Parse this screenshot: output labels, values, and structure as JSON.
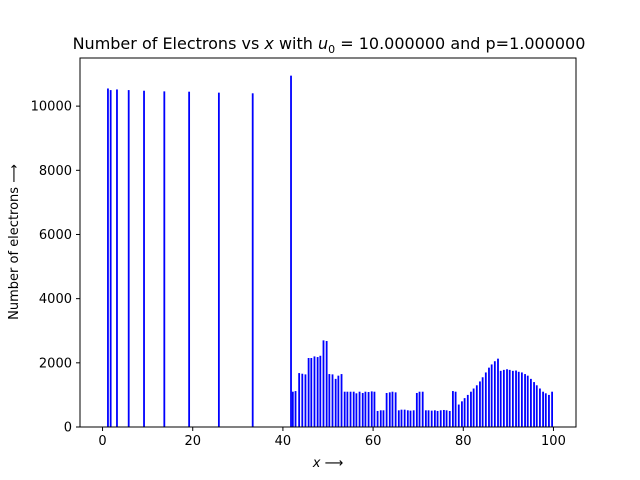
{
  "chart_data": {
    "type": "bar",
    "title_parts": [
      "Number of Electrons vs ",
      "x",
      " with ",
      "u",
      "0",
      " = 10.000000 and p=1.000000"
    ],
    "xlabel_parts": [
      "x",
      " ⟶"
    ],
    "ylabel": "Number of electrons  ⟶",
    "xlim": [
      -5,
      105
    ],
    "ylim": [
      0,
      11500
    ],
    "xticks": [
      0,
      20,
      40,
      60,
      80,
      100
    ],
    "yticks": [
      0,
      2000,
      4000,
      6000,
      8000,
      10000
    ],
    "bar_width": 0.4,
    "bar_color": "#0000ff",
    "grid": false,
    "x": [
      1.2,
      1.8,
      3.2,
      5.8,
      9.2,
      13.7,
      19.2,
      25.8,
      33.3,
      41.8,
      42.2,
      42.8,
      43.6,
      44.3,
      45.0,
      45.7,
      46.3,
      47.0,
      47.7,
      48.3,
      49.0,
      49.7,
      50.3,
      51.0,
      51.7,
      52.3,
      53.0,
      53.7,
      54.3,
      55.0,
      55.7,
      56.3,
      57.0,
      57.7,
      58.3,
      59.0,
      59.7,
      60.3,
      61.0,
      61.7,
      62.3,
      63.0,
      63.7,
      64.3,
      65.0,
      65.7,
      66.3,
      67.0,
      67.7,
      68.3,
      69.0,
      69.7,
      70.3,
      71.0,
      71.7,
      72.3,
      73.0,
      73.7,
      74.3,
      75.0,
      75.7,
      76.3,
      77.0,
      77.7,
      78.3,
      79.0,
      79.7,
      80.3,
      81.0,
      81.7,
      82.3,
      83.0,
      83.7,
      84.3,
      85.0,
      85.7,
      86.3,
      87.0,
      87.7,
      88.3,
      89.0,
      89.7,
      90.3,
      91.0,
      91.7,
      92.3,
      93.0,
      93.7,
      94.3,
      95.0,
      95.7,
      96.3,
      97.0,
      97.7,
      98.3,
      99.0,
      99.7
    ],
    "values": [
      10550,
      10500,
      10520,
      10500,
      10480,
      10460,
      10450,
      10420,
      10400,
      10950,
      1100,
      1120,
      1680,
      1660,
      1640,
      2150,
      2150,
      2200,
      2180,
      2220,
      2700,
      2680,
      1650,
      1640,
      1500,
      1600,
      1650,
      1100,
      1100,
      1100,
      1100,
      1050,
      1100,
      1060,
      1100,
      1090,
      1110,
      1100,
      500,
      520,
      520,
      1060,
      1080,
      1100,
      1080,
      520,
      540,
      540,
      520,
      510,
      520,
      1060,
      1100,
      1100,
      520,
      520,
      510,
      520,
      500,
      520,
      530,
      520,
      500,
      1120,
      1100,
      700,
      800,
      900,
      1000,
      1100,
      1200,
      1300,
      1420,
      1550,
      1700,
      1850,
      1950,
      2050,
      2130,
      1750,
      1780,
      1800,
      1780,
      1750,
      1760,
      1720,
      1700,
      1650,
      1600,
      1500,
      1400,
      1300,
      1200,
      1100,
      1050,
      1000,
      1100
    ]
  }
}
